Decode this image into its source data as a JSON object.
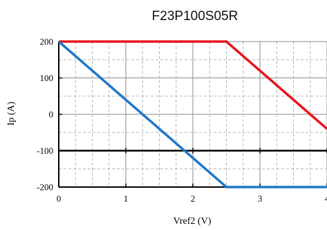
{
  "chart_data": {
    "type": "line",
    "title": "F23P100S05R",
    "xlabel": "Vref2 (V)",
    "ylabel": "Ip (A)",
    "xlim": [
      0,
      4
    ],
    "ylim": [
      -200,
      200
    ],
    "x_major_ticks": [
      0,
      1,
      2,
      3,
      4
    ],
    "y_major_ticks": [
      -200,
      -100,
      0,
      100,
      200
    ],
    "x_tick_labels": [
      "0",
      "1",
      "2",
      "3",
      "4"
    ],
    "y_tick_labels": [
      "-200",
      "-100",
      "0",
      "100",
      "200"
    ],
    "x_minor_step": 0.25,
    "y_minor_step": 50,
    "grid": true,
    "reference_line_y": -100,
    "series": [
      {
        "color": "#e8141b",
        "points": [
          [
            0,
            200
          ],
          [
            2.5,
            200
          ],
          [
            4,
            -40
          ]
        ]
      },
      {
        "color": "#1f76c8",
        "points": [
          [
            0,
            200
          ],
          [
            2.5,
            -200
          ],
          [
            4,
            -200
          ]
        ]
      }
    ]
  }
}
